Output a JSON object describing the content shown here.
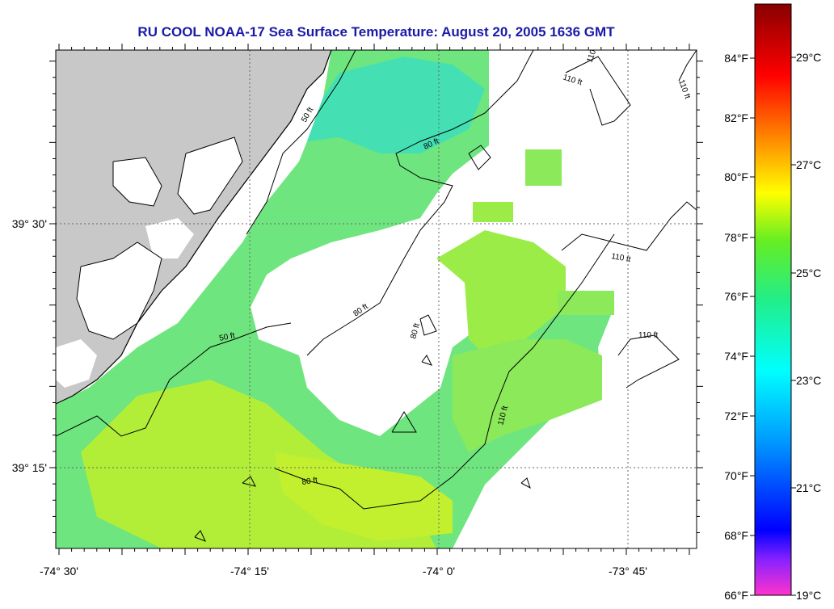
{
  "map": {
    "title": "RU COOL  NOAA-17  Sea Surface Temperature:  August 20, 2005 1636 GMT",
    "longitude_labels": [
      "-74° 30'",
      "-74° 15'",
      "-74° 0'",
      "-73° 45'"
    ],
    "latitude_labels": [
      "39° 30'",
      "39° 15'"
    ],
    "contour_labels": {
      "c50a": "50 ft",
      "c50b": "50 ft",
      "c80a": "80 ft",
      "c80b": "80 ft",
      "c80c": "80 ft",
      "c80d": "80 ft",
      "c110a": "110 ft",
      "c110b": "110 ft",
      "c110c": "110 ft",
      "c110d": "110 ft",
      "c110e": "110 ft",
      "c110f": "110 ft"
    },
    "colors": {
      "land": "#c8c8c8",
      "no_data": "#ffffff",
      "coastal_sst": "#6ee57e",
      "mid_sst": "#7ce860",
      "offshore_sst": "#c2f02e",
      "cool_sst": "#44e0b4"
    }
  },
  "colorbar": {
    "fahrenheit_labels": [
      "84°F",
      "82°F",
      "80°F",
      "78°F",
      "76°F",
      "74°F",
      "72°F",
      "70°F",
      "68°F",
      "66°F"
    ],
    "celsius_labels": [
      "29°C",
      "27°C",
      "25°C",
      "23°C",
      "21°C",
      "19°C"
    ],
    "range_f": [
      66,
      86
    ],
    "range_c": [
      19,
      30
    ]
  }
}
